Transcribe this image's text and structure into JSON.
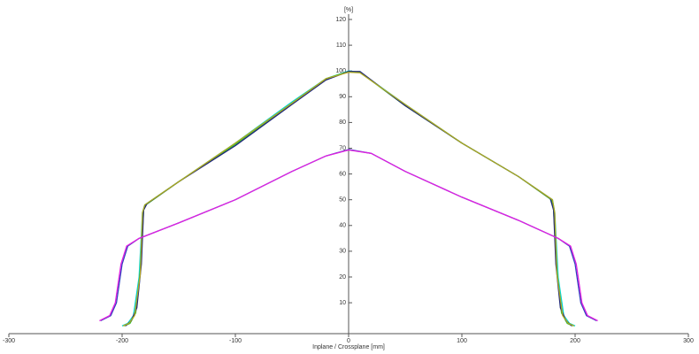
{
  "chart_data": {
    "type": "line",
    "y_label": "[%]",
    "x_label": "Inplane / Crossplane [mm]",
    "xlim": [
      -300,
      300
    ],
    "xticks": [
      -300,
      -200,
      -100,
      0,
      100,
      200,
      300
    ],
    "ylim": [
      -2,
      120
    ],
    "yticks": [
      10,
      20,
      30,
      40,
      50,
      60,
      70,
      80,
      90,
      100,
      110,
      120
    ],
    "grid": false,
    "series": [
      {
        "color": "#00d8d8",
        "x": [
          -200,
          -195,
          -190,
          -185,
          -182,
          -180,
          -150,
          -100,
          -50,
          -20,
          0,
          10,
          50,
          100,
          150,
          180,
          182,
          185,
          190,
          195,
          200
        ],
        "values": [
          1,
          2,
          5,
          20,
          45,
          48,
          57,
          72,
          88,
          97,
          100,
          99.5,
          87,
          72,
          59,
          50,
          45,
          20,
          5,
          2,
          1
        ]
      },
      {
        "color": "#30c030",
        "x": [
          -198,
          -193,
          -188,
          -184,
          -181,
          -179,
          -150,
          -100,
          -50,
          -20,
          0,
          10,
          50,
          100,
          150,
          179,
          181,
          184,
          188,
          193,
          198
        ],
        "values": [
          1,
          2,
          6,
          22,
          46,
          48,
          57,
          71.5,
          87.5,
          97,
          99.8,
          99.5,
          86.5,
          72,
          59,
          50,
          46,
          22,
          6,
          2,
          1
        ]
      },
      {
        "color": "#202878",
        "x": [
          -197,
          -192,
          -187,
          -183,
          -181,
          -178,
          -150,
          -100,
          -50,
          -20,
          0,
          10,
          50,
          100,
          150,
          178,
          181,
          183,
          187,
          192,
          197
        ],
        "values": [
          1,
          3,
          8,
          25,
          46,
          48.5,
          57,
          71,
          87,
          96.5,
          99.8,
          99.8,
          86.5,
          72,
          59,
          50.5,
          46,
          25,
          8,
          3,
          1
        ]
      },
      {
        "color": "#b0a820",
        "x": [
          -199,
          -194,
          -189,
          -184,
          -182,
          -180,
          -150,
          -100,
          -50,
          -20,
          0,
          10,
          50,
          100,
          150,
          180,
          182,
          184,
          189,
          194,
          199
        ],
        "values": [
          1,
          2,
          5,
          21,
          45,
          48,
          57,
          72,
          87.5,
          97,
          99.5,
          99.3,
          87,
          72,
          59,
          50,
          45,
          21,
          5,
          2,
          1
        ]
      },
      {
        "color": "#3040c0",
        "x": [
          -219,
          -210,
          -205,
          -200,
          -195,
          -185,
          -150,
          -100,
          -50,
          -20,
          0,
          20,
          50,
          100,
          150,
          185,
          195,
          200,
          205,
          210,
          219
        ],
        "values": [
          3,
          5,
          10,
          25,
          32,
          35,
          41,
          50,
          61,
          67,
          69.5,
          68,
          61,
          51,
          42,
          35,
          32,
          25,
          10,
          5,
          3
        ]
      },
      {
        "color": "#e020e0",
        "x": [
          -220,
          -211,
          -206,
          -201,
          -196,
          -185,
          -150,
          -100,
          -50,
          -20,
          0,
          20,
          50,
          100,
          150,
          185,
          196,
          201,
          206,
          211,
          220
        ],
        "values": [
          3,
          5,
          10,
          25,
          32,
          35,
          41,
          50,
          61,
          67,
          69.3,
          68,
          61,
          51,
          42,
          35,
          32,
          25,
          10,
          5,
          3
        ]
      }
    ]
  }
}
